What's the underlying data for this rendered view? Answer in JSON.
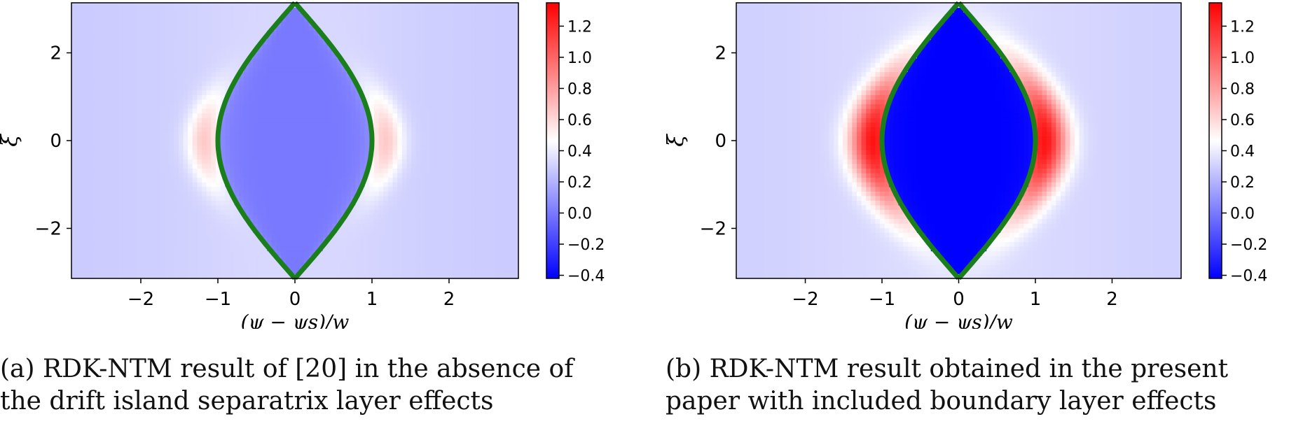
{
  "chart_data": [
    {
      "type": "heatmap",
      "panel": "(a)",
      "xlabel": "(ψ − ψs)/w",
      "ylabel": "ξ",
      "xlim": [
        -2.9,
        2.9
      ],
      "ylim": [
        -3.14,
        3.14
      ],
      "xticks": [
        -2,
        -1,
        0,
        1,
        2
      ],
      "xtick_labels": [
        "−2",
        "−1",
        "0",
        "1",
        "2"
      ],
      "yticks": [
        -2,
        0,
        2
      ],
      "ytick_labels": [
        "−2",
        "0",
        "2"
      ],
      "colorbar": {
        "cmap": "bwr",
        "range": [
          -0.42,
          1.35
        ],
        "ticks": [
          -0.4,
          -0.2,
          0.0,
          0.2,
          0.4,
          0.6,
          0.8,
          1.0,
          1.2
        ],
        "tick_labels": [
          "−0.4",
          "−0.2",
          "0.0",
          "0.2",
          "0.4",
          "0.6",
          "0.8",
          "1.0",
          "1.2"
        ]
      },
      "separatrix_color": "#1a7f1a",
      "field": {
        "background": 0.28,
        "island_interior": 0.0,
        "peaks": [
          {
            "x": -1.1,
            "xi": 0,
            "value": 0.62
          },
          {
            "x": 1.1,
            "xi": 0,
            "value": 0.62
          }
        ]
      },
      "grid": false
    },
    {
      "type": "heatmap",
      "panel": "(b)",
      "xlabel": "(ψ − ψs)/w",
      "ylabel": "ξ",
      "xlim": [
        -2.9,
        2.9
      ],
      "ylim": [
        -3.14,
        3.14
      ],
      "xticks": [
        -2,
        -1,
        0,
        1,
        2
      ],
      "xtick_labels": [
        "−2",
        "−1",
        "0",
        "1",
        "2"
      ],
      "yticks": [
        -2,
        0,
        2
      ],
      "ytick_labels": [
        "−2",
        "0",
        "2"
      ],
      "colorbar": {
        "cmap": "bwr",
        "range": [
          -0.42,
          1.35
        ],
        "ticks": [
          -0.4,
          -0.2,
          0.0,
          0.2,
          0.4,
          0.6,
          0.8,
          1.0,
          1.2
        ],
        "tick_labels": [
          "−0.4",
          "−0.2",
          "0.0",
          "0.2",
          "0.4",
          "0.6",
          "0.8",
          "1.0",
          "1.2"
        ]
      },
      "separatrix_color": "#1a7f1a",
      "field": {
        "background": 0.3,
        "island_interior": -0.42,
        "peaks": [
          {
            "x": -1.1,
            "xi": 0,
            "value": 1.25
          },
          {
            "x": 1.1,
            "xi": 0,
            "value": 1.25
          }
        ]
      },
      "grid": false
    }
  ],
  "captions": {
    "a_line1": "(a) RDK-NTM result of [20] in the absence of",
    "a_line2": "the drift island separatrix layer effects",
    "b_line1": "(b) RDK-NTM result obtained in the present",
    "b_line2": "paper with included boundary layer effects"
  }
}
